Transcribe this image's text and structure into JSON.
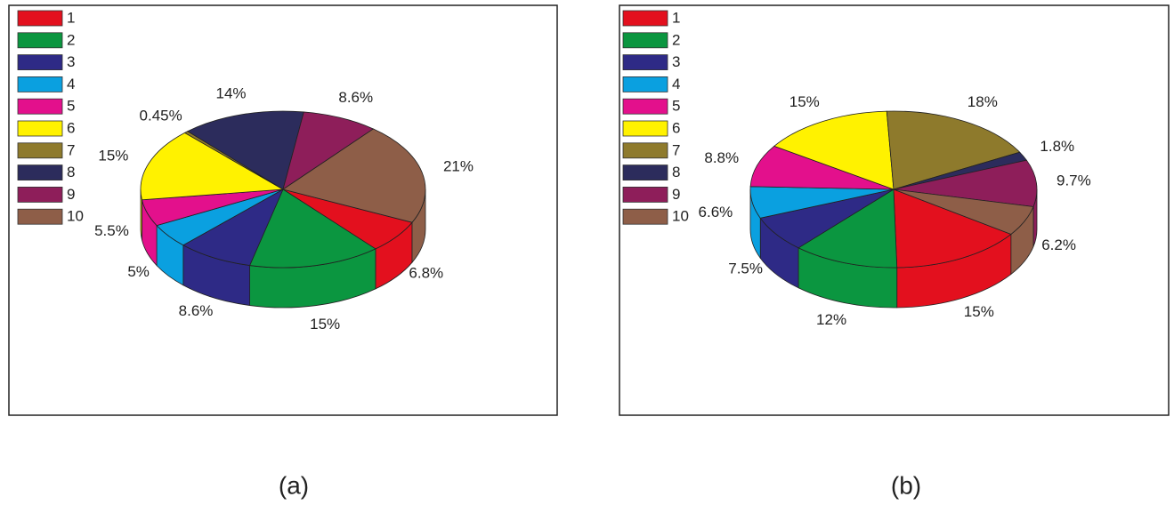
{
  "chart_data": [
    {
      "type": "pie",
      "caption": "(a)",
      "legend": "upper left",
      "categories": [
        "1",
        "2",
        "3",
        "4",
        "5",
        "6",
        "7",
        "8",
        "9",
        "10"
      ],
      "values": [
        6.8,
        15,
        8.6,
        5,
        5.5,
        15,
        0.45,
        14,
        8.6,
        21
      ],
      "value_labels": [
        "6.8%",
        "15%",
        "8.6%",
        "5%",
        "5.5%",
        "15%",
        "0.45%",
        "14%",
        "8.6%",
        "21%"
      ],
      "colors": [
        "#e3101e",
        "#0b9640",
        "#2e2a86",
        "#0aa0e0",
        "#e3108c",
        "#fff200",
        "#8e7a2c",
        "#2c2c5c",
        "#8e1e5a",
        "#8e5e48"
      ]
    },
    {
      "type": "pie",
      "caption": "(b)",
      "legend": "upper left",
      "categories": [
        "1",
        "2",
        "3",
        "4",
        "5",
        "6",
        "7",
        "8",
        "9",
        "10"
      ],
      "values": [
        15,
        12,
        7.5,
        6.6,
        8.8,
        15,
        18,
        1.8,
        9.7,
        6.2
      ],
      "value_labels": [
        "15%",
        "12%",
        "7.5%",
        "6.6%",
        "8.8%",
        "15%",
        "18%",
        "1.8%",
        "9.7%",
        "6.2%"
      ],
      "colors": [
        "#e3101e",
        "#0b9640",
        "#2e2a86",
        "#0aa0e0",
        "#e3108c",
        "#fff200",
        "#8e7a2c",
        "#2c2c5c",
        "#8e1e5a",
        "#8e5e48"
      ]
    }
  ]
}
